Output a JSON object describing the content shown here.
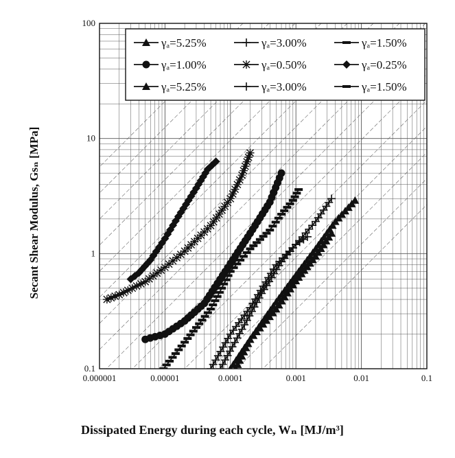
{
  "chart_data": {
    "type": "scatter",
    "title": "",
    "xlabel": "Dissipated Energy during each cycle, Wₙ [MJ/m³]",
    "ylabel": "Secant Shear Modulus, Gsₙ [MPa]",
    "xscale": "log",
    "yscale": "log",
    "xlim": [
      1e-06,
      0.1
    ],
    "ylim": [
      0.1,
      100
    ],
    "x_ticks": [
      "0.000001",
      "0.00001",
      "0.0001",
      "0.001",
      "0.01",
      "0.1"
    ],
    "y_ticks": [
      "0.1",
      "1",
      "10",
      "100"
    ],
    "grid": true,
    "legend_position": "top-right",
    "legend": [
      "γₐ=5.25%",
      "γₐ=3.00%",
      "γₐ=1.50%",
      "γₐ=1.00%",
      "γₐ=0.50%",
      "γₐ=0.25%",
      "γₐ=5.25%",
      "γₐ=3.00%",
      "γₐ=1.50%"
    ],
    "series": [
      {
        "name": "γₐ=0.25%",
        "marker": "diamond",
        "x": [
          3e-06,
          4e-06,
          6e-06,
          1e-05,
          1.6e-05,
          3e-05,
          4.5e-05,
          6e-05
        ],
        "y": [
          0.6,
          0.68,
          0.88,
          1.35,
          2.1,
          3.7,
          5.4,
          6.3
        ]
      },
      {
        "name": "γₐ=0.50%",
        "marker": "asterisk",
        "x": [
          1.3e-06,
          2e-06,
          5e-06,
          1e-05,
          2e-05,
          5e-05,
          0.0001,
          0.00015,
          0.0002
        ],
        "y": [
          0.4,
          0.44,
          0.57,
          0.76,
          1.05,
          1.75,
          3.0,
          4.8,
          7.5
        ]
      },
      {
        "name": "γₐ=1.00%",
        "marker": "circle",
        "x": [
          5e-06,
          1e-05,
          2e-05,
          4e-05,
          0.0001,
          0.0002,
          0.0004,
          0.0006
        ],
        "y": [
          0.18,
          0.2,
          0.26,
          0.37,
          0.82,
          1.5,
          2.8,
          5.0
        ]
      },
      {
        "name": "γₐ=1.50%",
        "marker": "bar",
        "x": [
          9.5e-06,
          2e-05,
          5e-05,
          0.0001,
          0.0002,
          0.0004,
          0.0006,
          0.0009,
          0.0011
        ],
        "y": [
          0.1,
          0.17,
          0.33,
          0.7,
          1.1,
          1.6,
          2.2,
          2.9,
          3.6
        ]
      },
      {
        "name": "γₐ=3.00%",
        "marker": "plus",
        "x": [
          5e-05,
          0.0001,
          0.0002,
          0.0005,
          0.001,
          0.0015
        ],
        "y": [
          0.1,
          0.2,
          0.34,
          0.8,
          1.2,
          1.4
        ]
      },
      {
        "name": "γₐ=5.25%",
        "marker": "triangle",
        "x": [
          0.0001,
          0.0002,
          0.0005,
          0.001,
          0.002,
          0.0035
        ],
        "y": [
          0.1,
          0.18,
          0.33,
          0.58,
          0.95,
          1.5
        ]
      },
      {
        "name": "γₐ=3.00%",
        "marker": "plus",
        "x": [
          7e-05,
          0.00015,
          0.0003,
          0.0006,
          0.001,
          0.002,
          0.0035
        ],
        "y": [
          0.1,
          0.22,
          0.45,
          0.85,
          1.2,
          1.9,
          3.0
        ]
      },
      {
        "name": "γₐ=5.25%",
        "marker": "triangle",
        "x": [
          0.00012,
          0.0002,
          0.0005,
          0.001,
          0.002,
          0.004,
          0.008
        ],
        "y": [
          0.1,
          0.18,
          0.38,
          0.65,
          1.1,
          1.9,
          2.9
        ]
      }
    ]
  }
}
